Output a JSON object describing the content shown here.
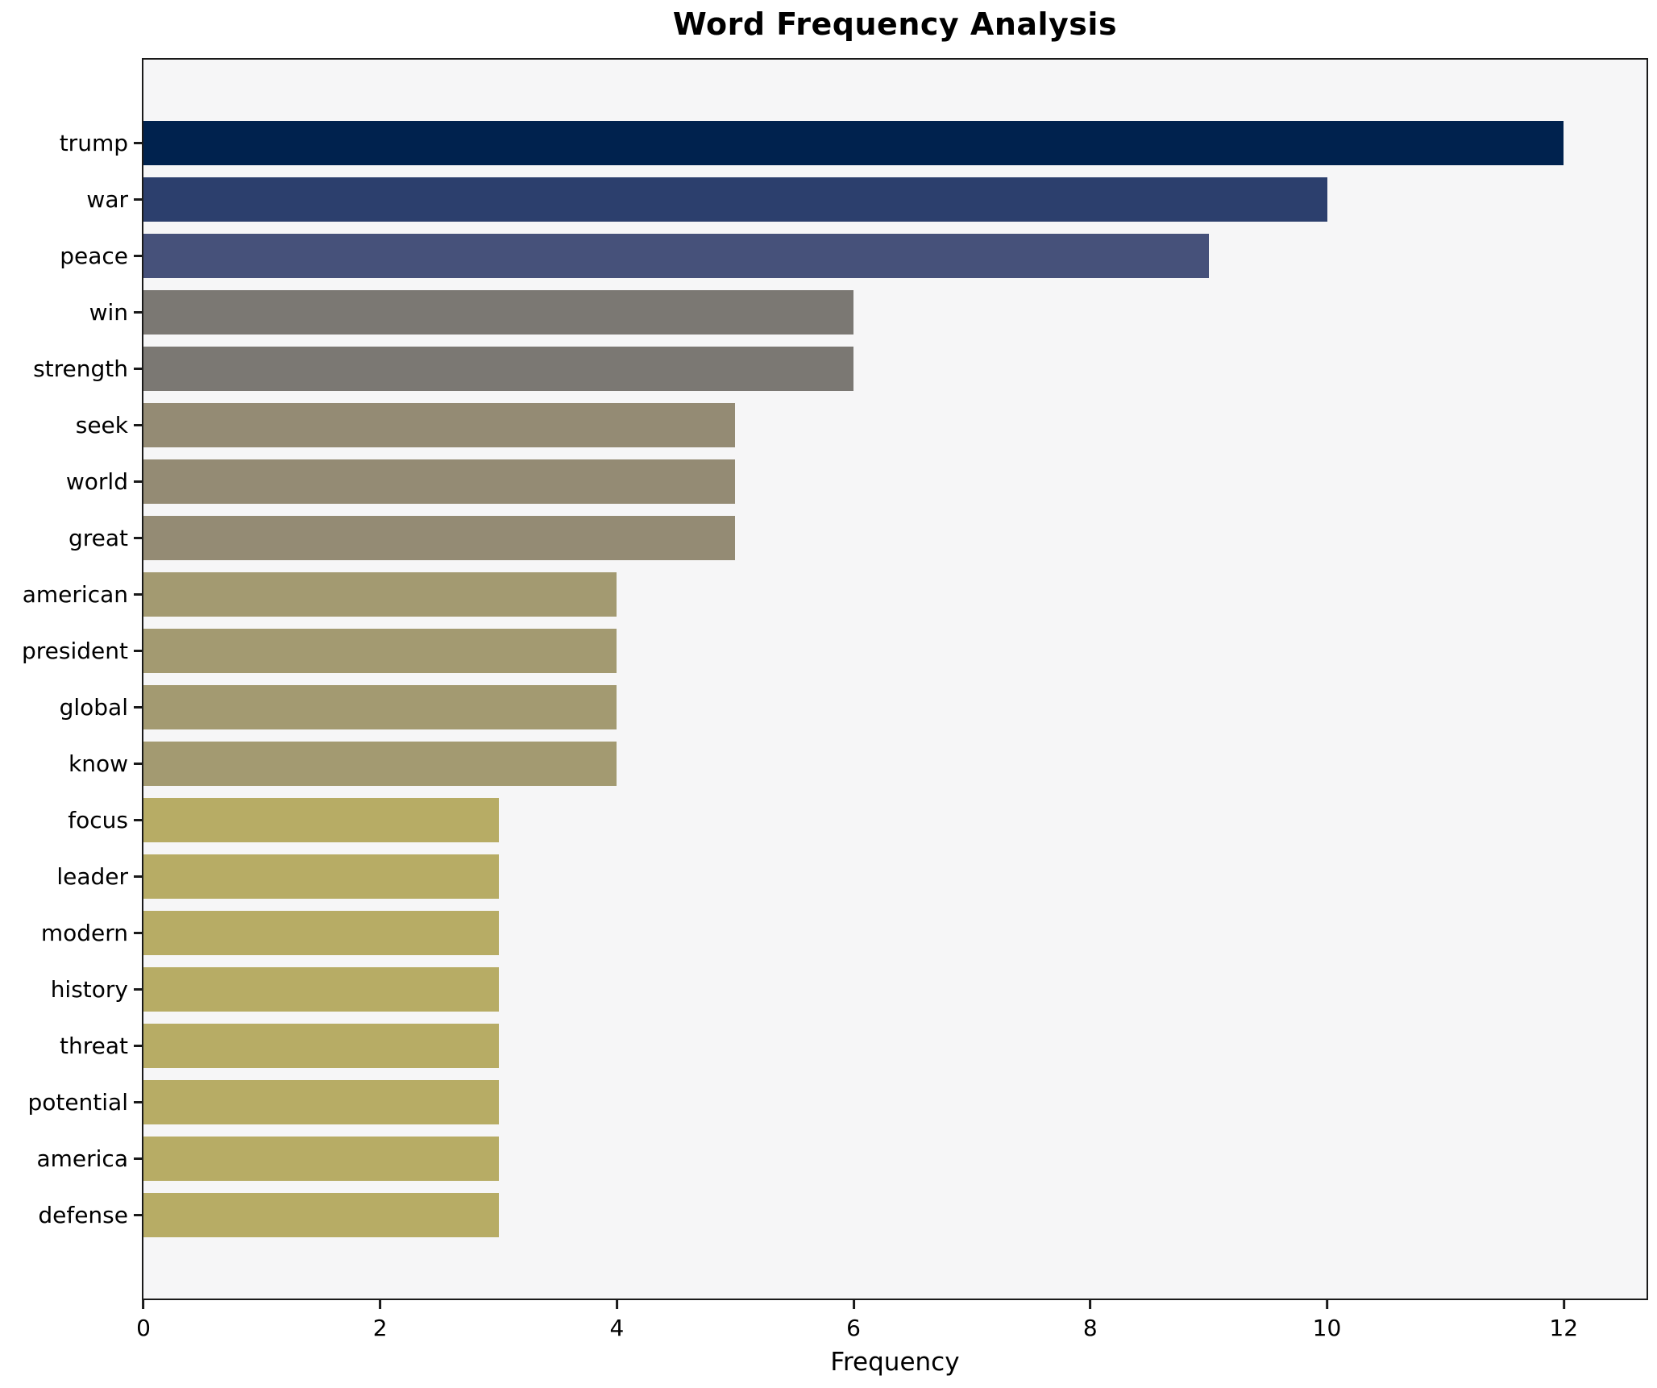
{
  "chart_data": {
    "type": "bar",
    "orientation": "horizontal",
    "title": "Word Frequency Analysis",
    "xlabel": "Frequency",
    "ylabel": "",
    "categories": [
      "trump",
      "war",
      "peace",
      "win",
      "strength",
      "seek",
      "world",
      "great",
      "american",
      "president",
      "global",
      "know",
      "focus",
      "leader",
      "modern",
      "history",
      "threat",
      "potential",
      "america",
      "defense"
    ],
    "values": [
      12,
      10,
      9,
      6,
      6,
      5,
      5,
      5,
      4,
      4,
      4,
      4,
      3,
      3,
      3,
      3,
      3,
      3,
      3,
      3
    ],
    "bar_colors": [
      "#00224e",
      "#2c3f6d",
      "#46517a",
      "#7b7873",
      "#7b7873",
      "#948b74",
      "#948b74",
      "#948b74",
      "#a39a71",
      "#a39a71",
      "#a39a71",
      "#a39a71",
      "#b7ac65",
      "#b7ac65",
      "#b7ac65",
      "#b7ac65",
      "#b7ac65",
      "#b7ac65",
      "#b7ac65",
      "#b7ac65"
    ],
    "xlim": [
      0,
      12.7
    ],
    "xticks": [
      0,
      2,
      4,
      6,
      8,
      10,
      12
    ],
    "grid": false,
    "legend": "none",
    "plot_background": "#f6f6f7",
    "figure_background": "#ffffff",
    "spine_color": "#1a1a1a"
  }
}
